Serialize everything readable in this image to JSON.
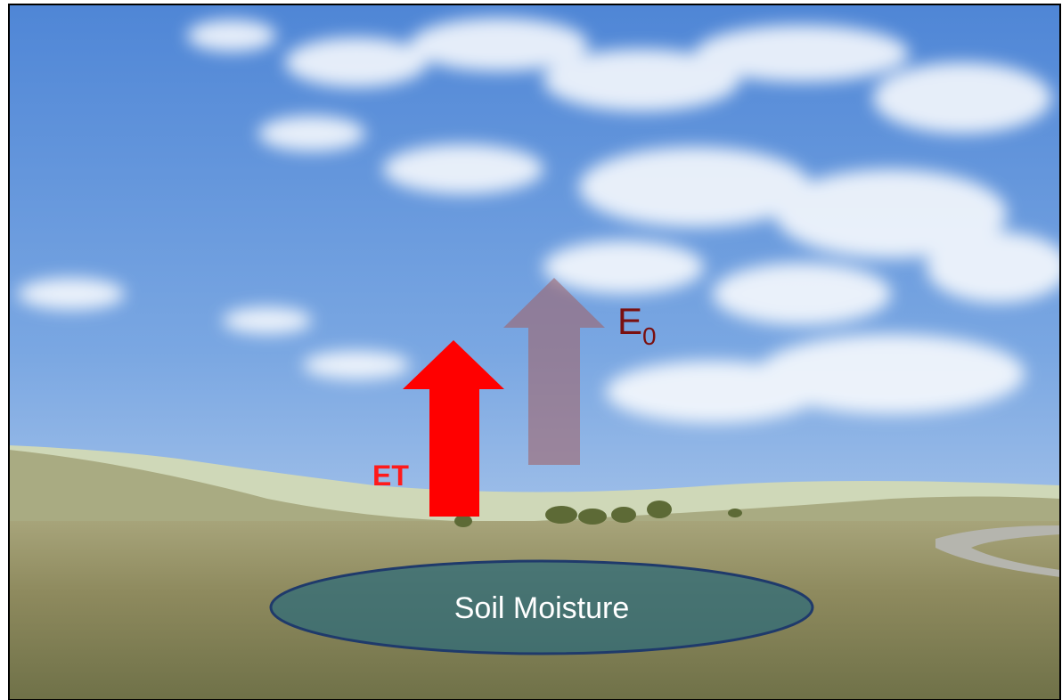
{
  "labels": {
    "et": "ET",
    "e0": {
      "main": "E",
      "subscript": "0"
    },
    "soil": "Soil Moisture"
  }
}
